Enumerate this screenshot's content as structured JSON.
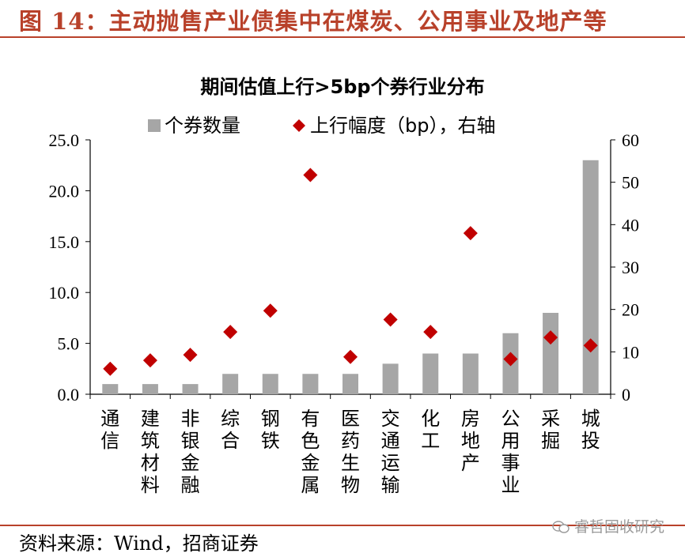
{
  "figure": {
    "title": "图 14：主动抛售产业债集中在煤炭、公用事业及地产等",
    "source": "资料来源：Wind，招商证券",
    "watermark": "睿哲固收研究"
  },
  "colors": {
    "accent": "#b8412a",
    "bar": "#a6a6a6",
    "marker": "#c00000"
  },
  "chart_data": {
    "type": "bar",
    "title": "期间估值上行>5bp个券行业分布",
    "categories": [
      "通信",
      "建筑材料",
      "非银金融",
      "综合",
      "钢铁",
      "有色金属",
      "医药生物",
      "交通运输",
      "化工",
      "房地产",
      "公用事业",
      "采掘",
      "城投"
    ],
    "series": [
      {
        "name": "个券数量",
        "type": "bar",
        "axis": "left",
        "values": [
          1,
          1,
          1,
          2,
          2,
          2,
          2,
          3,
          4,
          4,
          6,
          8,
          23
        ]
      },
      {
        "name": "上行幅度（bp），右轴",
        "type": "scatter",
        "axis": "right",
        "values": [
          6,
          8,
          9.3,
          14.7,
          19.7,
          51.7,
          8.8,
          17.6,
          14.7,
          38,
          8.3,
          13.4,
          11.5
        ]
      }
    ],
    "y_left": {
      "ylim": [
        0,
        25
      ],
      "ticks": [
        "0.0",
        "5.0",
        "10.0",
        "15.0",
        "20.0",
        "25.0"
      ]
    },
    "y_right": {
      "ylim": [
        0,
        60
      ],
      "ticks": [
        "0",
        "10",
        "20",
        "30",
        "40",
        "50",
        "60"
      ]
    },
    "grid": false,
    "legend": "top"
  }
}
